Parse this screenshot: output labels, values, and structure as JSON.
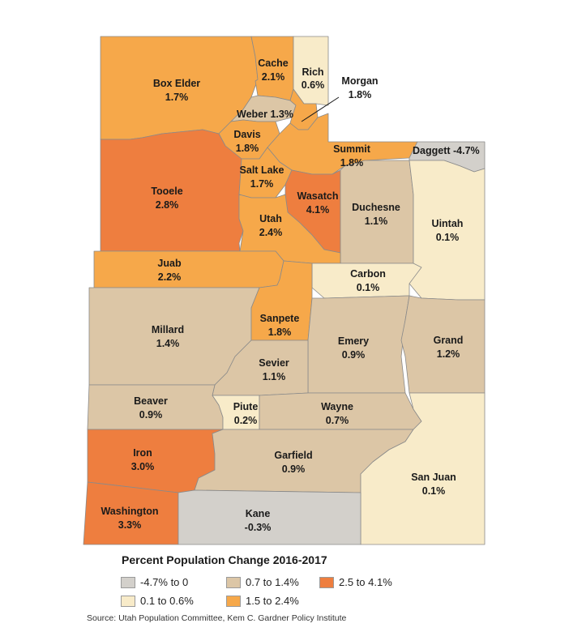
{
  "colors": {
    "negative": "#d3d0cb",
    "low": "#f8ebc9",
    "mid": "#dcc6a6",
    "high": "#f6a84a",
    "top": "#ee7e3f"
  },
  "counties": {
    "box_elder": {
      "name": "Box Elder",
      "value": "1.7%",
      "cls": "high"
    },
    "cache": {
      "name": "Cache",
      "value": "2.1%",
      "cls": "high"
    },
    "rich": {
      "name": "Rich",
      "value": "0.6%",
      "cls": "low"
    },
    "morgan": {
      "name": "Morgan",
      "value": "1.8%",
      "cls": "high"
    },
    "weber": {
      "name": "Weber",
      "value": "1.3%",
      "cls": "mid"
    },
    "davis": {
      "name": "Davis",
      "value": "1.8%",
      "cls": "high"
    },
    "summit": {
      "name": "Summit",
      "value": "1.8%",
      "cls": "high"
    },
    "daggett": {
      "name": "Daggett",
      "value": "-4.7%",
      "cls": "negative"
    },
    "tooele": {
      "name": "Tooele",
      "value": "2.8%",
      "cls": "top"
    },
    "salt_lake": {
      "name": "Salt Lake",
      "value": "1.7%",
      "cls": "high"
    },
    "wasatch": {
      "name": "Wasatch",
      "value": "4.1%",
      "cls": "top"
    },
    "duchesne": {
      "name": "Duchesne",
      "value": "1.1%",
      "cls": "mid"
    },
    "uintah": {
      "name": "Uintah",
      "value": "0.1%",
      "cls": "low"
    },
    "utah": {
      "name": "Utah",
      "value": "2.4%",
      "cls": "high"
    },
    "juab": {
      "name": "Juab",
      "value": "2.2%",
      "cls": "high"
    },
    "carbon": {
      "name": "Carbon",
      "value": "0.1%",
      "cls": "low"
    },
    "millard": {
      "name": "Millard",
      "value": "1.4%",
      "cls": "mid"
    },
    "sanpete": {
      "name": "Sanpete",
      "value": "1.8%",
      "cls": "high"
    },
    "emery": {
      "name": "Emery",
      "value": "0.9%",
      "cls": "mid"
    },
    "grand": {
      "name": "Grand",
      "value": "1.2%",
      "cls": "mid"
    },
    "sevier": {
      "name": "Sevier",
      "value": "1.1%",
      "cls": "mid"
    },
    "beaver": {
      "name": "Beaver",
      "value": "0.9%",
      "cls": "mid"
    },
    "piute": {
      "name": "Piute",
      "value": "0.2%",
      "cls": "low"
    },
    "wayne": {
      "name": "Wayne",
      "value": "0.7%",
      "cls": "mid"
    },
    "iron": {
      "name": "Iron",
      "value": "3.0%",
      "cls": "top"
    },
    "garfield": {
      "name": "Garfield",
      "value": "0.9%",
      "cls": "mid"
    },
    "san_juan": {
      "name": "San Juan",
      "value": "0.1%",
      "cls": "low"
    },
    "washington": {
      "name": "Washington",
      "value": "3.3%",
      "cls": "top"
    },
    "kane": {
      "name": "Kane",
      "value": "-0.3%",
      "cls": "negative"
    }
  },
  "legend": {
    "title": "Percent Population Change 2016-2017",
    "items": [
      {
        "label": "-4.7% to 0",
        "cls": "negative"
      },
      {
        "label": "0.7 to 1.4%",
        "cls": "mid"
      },
      {
        "label": "2.5 to 4.1%",
        "cls": "top"
      },
      {
        "label": "0.1 to 0.6%",
        "cls": "low"
      },
      {
        "label": "1.5 to 2.4%",
        "cls": "high"
      }
    ]
  },
  "source": "Source: Utah Population Committee, Kem C. Gardner Policy Institute"
}
